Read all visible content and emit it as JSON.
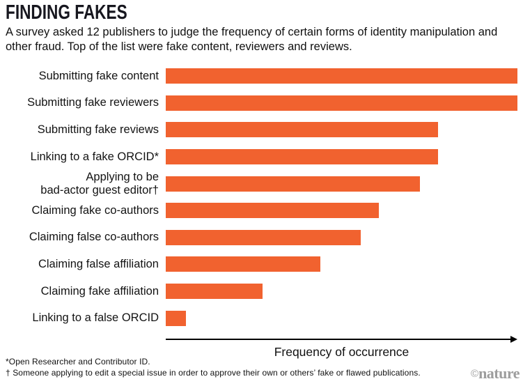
{
  "header": {
    "title": "FINDING FAKES",
    "subtitle": "A survey asked 12 publishers to judge the frequency of certain forms of identity manipulation and other fraud. Top of the list were fake content, reviewers and reviews."
  },
  "chart_data": {
    "type": "bar",
    "orientation": "horizontal",
    "title": "FINDING FAKES",
    "categories": [
      "Submitting fake content",
      "Submitting fake reviewers",
      "Submitting fake reviews",
      "Linking to a fake ORCID*",
      "Applying to be\nbad-actor guest editor†",
      "Claiming fake co-authors",
      "Claiming false co-authors",
      "Claiming false affiliation",
      "Claiming fake affiliation",
      "Linking to a false ORCID"
    ],
    "values_pct_of_max": [
      100,
      100,
      77.4,
      77.4,
      72.3,
      60.6,
      55.4,
      44.0,
      27.5,
      5.7
    ],
    "xlabel": "Frequency of occurrence",
    "x_axis_numeric_labels": false,
    "grid": false,
    "legend": false,
    "bar_color": "#F1622F",
    "axis_color": "#000000"
  },
  "footnotes": {
    "line1": "*Open Researcher and Contributor ID.",
    "line2": "† Someone applying to edit a special issue in order to approve their own or others’ fake or flawed publications."
  },
  "branding": {
    "credit_symbol": "©",
    "credit_name": "nature"
  }
}
